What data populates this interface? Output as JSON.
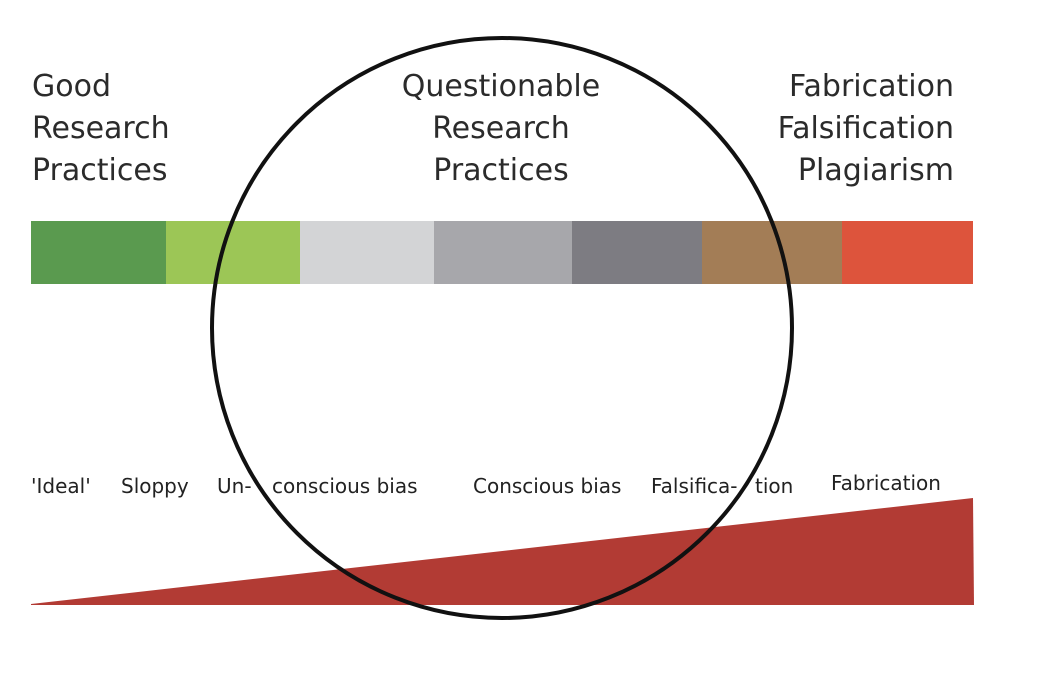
{
  "headings": {
    "left": [
      "Good",
      "Research",
      "Practices"
    ],
    "middle": [
      "Questionable",
      "Research",
      "Practices"
    ],
    "right": [
      "Fabrication",
      "Falsification",
      "Plagiarism"
    ]
  },
  "spectrum_colors": [
    "#5a9a4f",
    "#9cc656",
    "#d3d4d6",
    "#a7a7ab",
    "#7d7c82",
    "#a37d56",
    "#dd543c"
  ],
  "scale_labels": [
    "'Ideal'",
    "Sloppy",
    "Un-",
    "conscious bias",
    "Conscious bias",
    "Falsifica-",
    "tion",
    "Fabrication"
  ],
  "wedge_color": "#b23b34",
  "circle_color": "#111111"
}
